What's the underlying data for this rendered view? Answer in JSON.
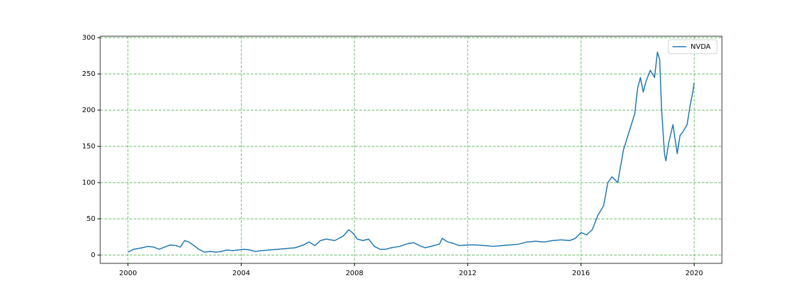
{
  "chart_data": {
    "type": "line",
    "x": [
      2000.0,
      2000.2,
      2000.5,
      2000.7,
      2000.9,
      2001.1,
      2001.3,
      2001.5,
      2001.7,
      2001.85,
      2002.0,
      2002.15,
      2002.3,
      2002.5,
      2002.7,
      2002.9,
      2003.1,
      2003.3,
      2003.5,
      2003.7,
      2003.9,
      2004.1,
      2004.3,
      2004.5,
      2004.7,
      2005.0,
      2005.3,
      2005.6,
      2005.9,
      2006.2,
      2006.4,
      2006.6,
      2006.8,
      2007.0,
      2007.3,
      2007.6,
      2007.8,
      2007.95,
      2008.1,
      2008.3,
      2008.5,
      2008.7,
      2008.9,
      2009.1,
      2009.3,
      2009.6,
      2009.9,
      2010.1,
      2010.3,
      2010.5,
      2010.8,
      2011.0,
      2011.1,
      2011.3,
      2011.5,
      2011.7,
      2012.0,
      2012.3,
      2012.6,
      2012.9,
      2013.2,
      2013.5,
      2013.8,
      2014.1,
      2014.4,
      2014.7,
      2015.0,
      2015.3,
      2015.6,
      2015.8,
      2016.0,
      2016.2,
      2016.4,
      2016.6,
      2016.8,
      2016.95,
      2017.1,
      2017.3,
      2017.5,
      2017.7,
      2017.9,
      2018.0,
      2018.1,
      2018.2,
      2018.3,
      2018.45,
      2018.6,
      2018.7,
      2018.78,
      2018.85,
      2018.95,
      2019.0,
      2019.1,
      2019.25,
      2019.4,
      2019.5,
      2019.6,
      2019.75,
      2019.85,
      2019.95,
      2020.0
    ],
    "series": [
      {
        "name": "NVDA",
        "color": "#1f77b4",
        "values": [
          4,
          8,
          10,
          12,
          11,
          8,
          11,
          14,
          13,
          11,
          20,
          18,
          14,
          8,
          4,
          5,
          4,
          5,
          7,
          6,
          7,
          8,
          7,
          5,
          6,
          7,
          8,
          9,
          10,
          14,
          18,
          13,
          20,
          22,
          20,
          26,
          35,
          30,
          22,
          20,
          22,
          12,
          8,
          8,
          10,
          12,
          16,
          17,
          13,
          10,
          13,
          15,
          23,
          18,
          16,
          13,
          14,
          14,
          13,
          12,
          13,
          14,
          15,
          18,
          19,
          18,
          20,
          21,
          20,
          23,
          31,
          28,
          35,
          55,
          68,
          100,
          108,
          100,
          145,
          170,
          195,
          230,
          245,
          225,
          240,
          255,
          245,
          280,
          270,
          200,
          140,
          130,
          155,
          180,
          140,
          165,
          170,
          180,
          205,
          225,
          238
        ]
      }
    ],
    "xlim": [
      1999.02,
      2020.98
    ],
    "ylim": [
      -11.5,
      302
    ],
    "xticks": [
      2000,
      2004,
      2008,
      2012,
      2016,
      2020
    ],
    "yticks": [
      0,
      50,
      100,
      150,
      200,
      250,
      300
    ],
    "grid": true,
    "grid_color": "#2ca02c",
    "legend": "upper right"
  }
}
